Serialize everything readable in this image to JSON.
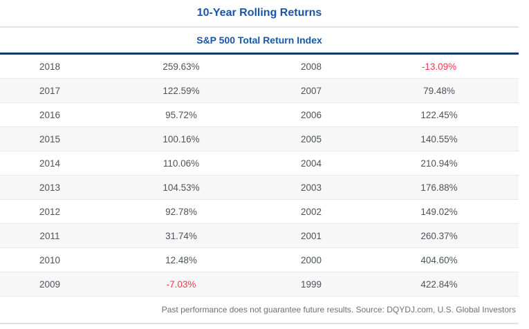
{
  "header": {
    "title": "10-Year Rolling Returns",
    "subtitle": "S&P 500 Total Return Index"
  },
  "footer": {
    "note": "Past performance does not guarantee future results. Source: DQYDJ.com, U.S. Global Investors"
  },
  "colors": {
    "accent_blue": "#1a56a3",
    "navy_rule": "#143a66",
    "negative_red": "#fb3449",
    "row_text": "#4f5358",
    "stripe_bg": "#f7f7f8",
    "row_border": "#e7e7e8",
    "light_rule": "#e3e3e4",
    "footer_text": "#6e7073"
  },
  "chart_data": {
    "type": "table",
    "title": "10-Year Rolling Returns",
    "subtitle": "S&P 500 Total Return Index",
    "rows": [
      [
        "2018",
        "259.63%",
        "2008",
        "-13.09%"
      ],
      [
        "2017",
        "122.59%",
        "2007",
        "79.48%"
      ],
      [
        "2016",
        "95.72%",
        "2006",
        "122.45%"
      ],
      [
        "2015",
        "100.16%",
        "2005",
        "140.55%"
      ],
      [
        "2014",
        "110.06%",
        "2004",
        "210.94%"
      ],
      [
        "2013",
        "104.53%",
        "2003",
        "176.88%"
      ],
      [
        "2012",
        "92.78%",
        "2002",
        "149.02%"
      ],
      [
        "2011",
        "31.74%",
        "2001",
        "260.37%"
      ],
      [
        "2010",
        "12.48%",
        "2000",
        "404.60%"
      ],
      [
        "2009",
        "-7.03%",
        "1999",
        "422.84%"
      ]
    ],
    "layout_hints": {
      "columns_pattern": [
        "year",
        "return",
        "year",
        "return"
      ],
      "zebra_striping": "even rows shaded",
      "negative_values_colored_red": true,
      "source_note_position": "bottom-right"
    }
  }
}
